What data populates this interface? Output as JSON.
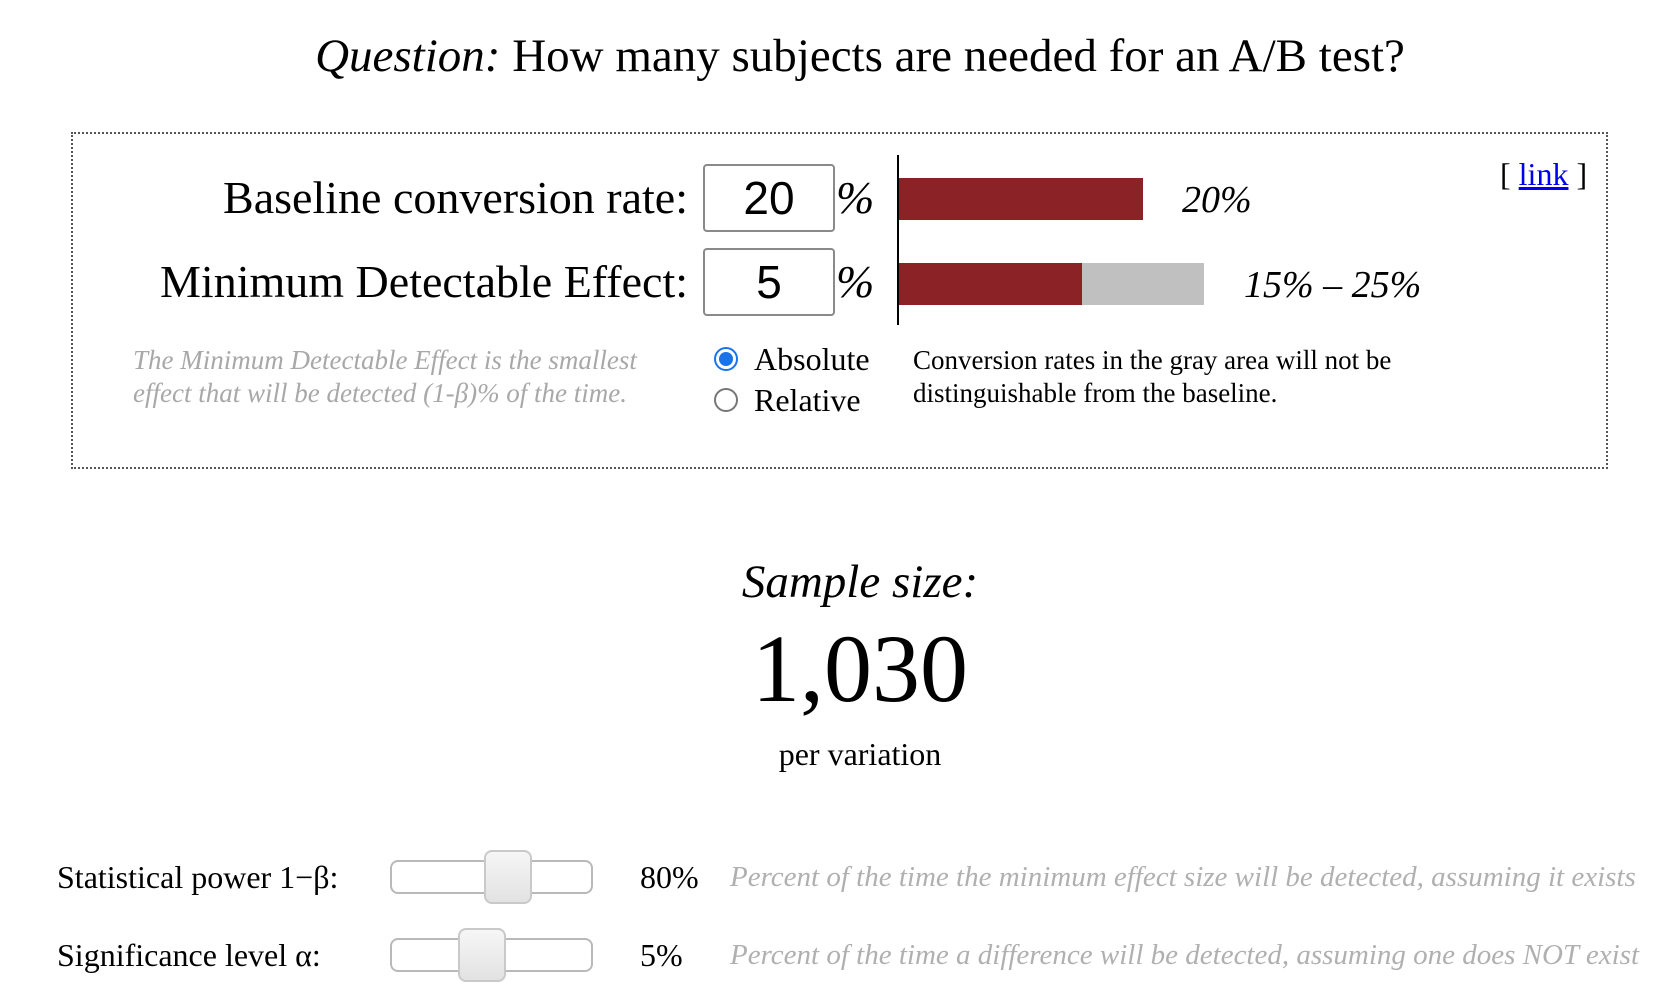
{
  "question": {
    "prefix": "Question:",
    "text": "How many subjects are needed for an A/B test?"
  },
  "inputs": {
    "baseline": {
      "label": "Baseline conversion rate:",
      "value": "20",
      "unit": "%"
    },
    "mde": {
      "label": "Minimum Detectable Effect:",
      "value": "5",
      "unit": "%"
    }
  },
  "link": {
    "open": "[ ",
    "label": "link",
    "close": " ]"
  },
  "bars": {
    "baseline_percent": 20,
    "baseline_label": "20%",
    "range_low_percent": 15,
    "range_high_percent": 25,
    "range_label": "15% – 25%",
    "colors": {
      "baseline": "#8b2225",
      "gray_area": "#c0c0c0"
    }
  },
  "mde_help": "The Minimum Detectable Effect is the smallest effect that will be detected (1-β)% of the time.",
  "mde_mode": {
    "options": [
      "Absolute",
      "Relative"
    ],
    "selected": "Absolute"
  },
  "gray_note": "Conversion rates in the gray area will not be distinguishable from the baseline.",
  "result": {
    "label": "Sample size:",
    "value": "1,030",
    "unit": "per variation"
  },
  "sliders": {
    "power": {
      "label": "Statistical power 1−β:",
      "value": "80%",
      "level_fraction": 0.8,
      "description": "Percent of the time the minimum effect size will be detected, assuming it exists"
    },
    "alpha": {
      "label": "Significance level α:",
      "value": "5%",
      "level_fraction": 0.05,
      "description": "Percent of the time a difference will be detected, assuming one does NOT exist"
    }
  }
}
